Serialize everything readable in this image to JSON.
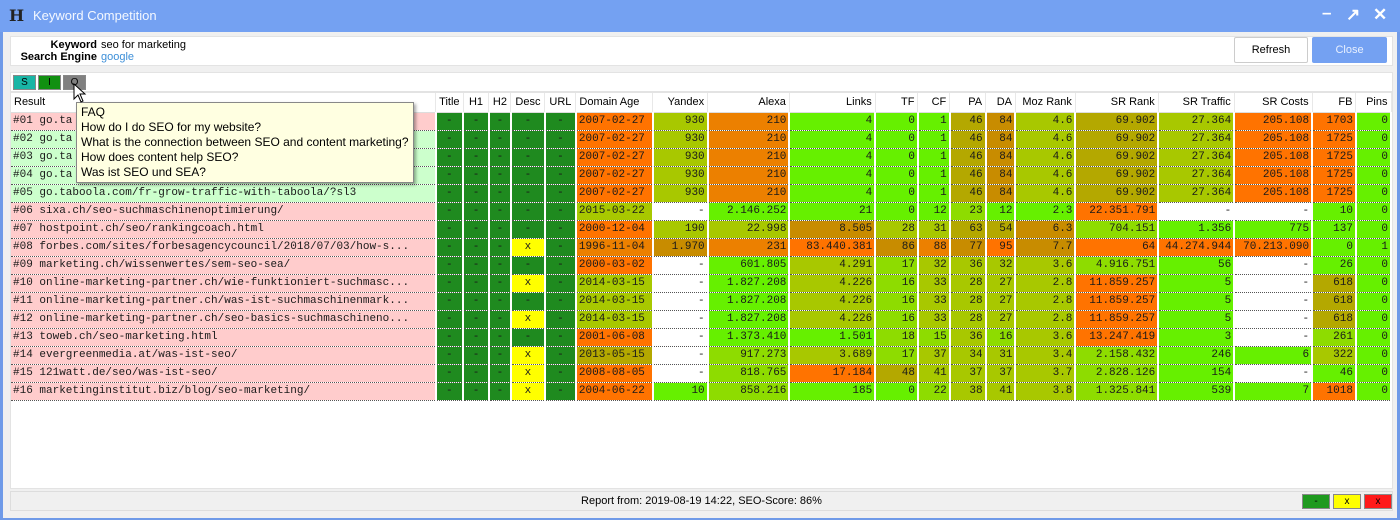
{
  "window": {
    "title": "Keyword Competition",
    "icon": "app-logo-icon",
    "controls": [
      "minimize-icon",
      "maximize-icon",
      "close-icon"
    ]
  },
  "info": {
    "keyword_label": "Keyword",
    "keyword": "seo for marketing",
    "engine_label": "Search Engine",
    "engine": "google",
    "refresh": "Refresh",
    "close": "Close"
  },
  "toolbar": {
    "buttons": [
      {
        "label": "S",
        "color": "#19b5a5"
      },
      {
        "label": "I",
        "color": "#119011"
      },
      {
        "label": "O",
        "color": "#808080"
      }
    ]
  },
  "tooltip": {
    "lines": [
      "FAQ",
      "How do I do SEO for my website?",
      "What is the connection between SEO and content marketing?",
      "How does content help SEO?",
      "Was ist SEO und SEA?"
    ]
  },
  "palette": {
    "D": "#1f8a1f",
    "Y": "#ffff00",
    "g": "#66f000",
    "l": "#8edc00",
    "o": "#a8c800",
    "k": "#b4a800",
    "b": "#c88c00",
    "a": "#ec8000",
    "r": "#ff7300",
    "w": "#ffffff",
    "P": "#ffcccc",
    "G": "#ccffcc"
  },
  "table": {
    "columns": [
      "Result",
      "Title",
      "H1",
      "H2",
      "Desc",
      "URL",
      "Domain Age",
      "Yandex",
      "Alexa",
      "Links",
      "TF",
      "CF",
      "PA",
      "DA",
      "Moz Rank",
      "SR Rank",
      "SR Traffic",
      "SR Costs",
      "FB",
      "Pins"
    ],
    "rows": [
      {
        "bg": "P",
        "result": "#01 go.ta",
        "checks": [
          "-",
          "-",
          "-",
          "-",
          "-"
        ],
        "cells": [
          [
            "2007-02-27",
            "r"
          ],
          [
            "930",
            "o"
          ],
          [
            "210",
            "a"
          ],
          [
            "4",
            "g"
          ],
          [
            "0",
            "g"
          ],
          [
            "1",
            "g"
          ],
          [
            "46",
            "k"
          ],
          [
            "84",
            "b"
          ],
          [
            "4.6",
            "o"
          ],
          [
            "69.902",
            "k"
          ],
          [
            "27.364",
            "o"
          ],
          [
            "205.108",
            "r"
          ],
          [
            "1703",
            "r"
          ],
          [
            "0",
            "g"
          ]
        ]
      },
      {
        "bg": "G",
        "result": "#02 go.ta",
        "checks": [
          "-",
          "-",
          "-",
          "-",
          "-"
        ],
        "cells": [
          [
            "2007-02-27",
            "r"
          ],
          [
            "930",
            "o"
          ],
          [
            "210",
            "a"
          ],
          [
            "4",
            "g"
          ],
          [
            "0",
            "g"
          ],
          [
            "1",
            "g"
          ],
          [
            "46",
            "k"
          ],
          [
            "84",
            "b"
          ],
          [
            "4.6",
            "o"
          ],
          [
            "69.902",
            "k"
          ],
          [
            "27.364",
            "o"
          ],
          [
            "205.108",
            "r"
          ],
          [
            "1725",
            "r"
          ],
          [
            "0",
            "g"
          ]
        ]
      },
      {
        "bg": "G",
        "result": "#03 go.ta",
        "checks": [
          "-",
          "-",
          "-",
          "-",
          "-"
        ],
        "cells": [
          [
            "2007-02-27",
            "r"
          ],
          [
            "930",
            "o"
          ],
          [
            "210",
            "a"
          ],
          [
            "4",
            "g"
          ],
          [
            "0",
            "g"
          ],
          [
            "1",
            "g"
          ],
          [
            "46",
            "k"
          ],
          [
            "84",
            "b"
          ],
          [
            "4.6",
            "o"
          ],
          [
            "69.902",
            "k"
          ],
          [
            "27.364",
            "o"
          ],
          [
            "205.108",
            "r"
          ],
          [
            "1725",
            "r"
          ],
          [
            "0",
            "g"
          ]
        ]
      },
      {
        "bg": "G",
        "result": "#04 go.ta",
        "checks": [
          "-",
          "-",
          "-",
          "-",
          "-"
        ],
        "cells": [
          [
            "2007-02-27",
            "r"
          ],
          [
            "930",
            "o"
          ],
          [
            "210",
            "a"
          ],
          [
            "4",
            "g"
          ],
          [
            "0",
            "g"
          ],
          [
            "1",
            "g"
          ],
          [
            "46",
            "k"
          ],
          [
            "84",
            "b"
          ],
          [
            "4.6",
            "o"
          ],
          [
            "69.902",
            "k"
          ],
          [
            "27.364",
            "o"
          ],
          [
            "205.108",
            "r"
          ],
          [
            "1725",
            "r"
          ],
          [
            "0",
            "g"
          ]
        ]
      },
      {
        "bg": "G",
        "result": "#05 go.taboola.com/fr-grow-traffic-with-taboola/?sl3",
        "checks": [
          "-",
          "-",
          "-",
          "-",
          "-"
        ],
        "cells": [
          [
            "2007-02-27",
            "r"
          ],
          [
            "930",
            "o"
          ],
          [
            "210",
            "a"
          ],
          [
            "4",
            "g"
          ],
          [
            "0",
            "g"
          ],
          [
            "1",
            "g"
          ],
          [
            "46",
            "k"
          ],
          [
            "84",
            "b"
          ],
          [
            "4.6",
            "o"
          ],
          [
            "69.902",
            "k"
          ],
          [
            "27.364",
            "o"
          ],
          [
            "205.108",
            "r"
          ],
          [
            "1725",
            "r"
          ],
          [
            "0",
            "g"
          ]
        ]
      },
      {
        "bg": "P",
        "result": "#06 sixa.ch/seo-suchmaschinenoptimierung/",
        "checks": [
          "-",
          "-",
          "-",
          "-",
          "-"
        ],
        "cells": [
          [
            "2015-03-22",
            "o"
          ],
          [
            "-",
            "w"
          ],
          [
            "2.146.252",
            "g"
          ],
          [
            "21",
            "g"
          ],
          [
            "0",
            "g"
          ],
          [
            "12",
            "g"
          ],
          [
            "23",
            "l"
          ],
          [
            "12",
            "g"
          ],
          [
            "2.3",
            "g"
          ],
          [
            "22.351.791",
            "r"
          ],
          [
            "-",
            "w"
          ],
          [
            "-",
            "w"
          ],
          [
            "10",
            "g"
          ],
          [
            "0",
            "g"
          ]
        ]
      },
      {
        "bg": "P",
        "result": "#07 hostpoint.ch/seo/rankingcoach.html",
        "checks": [
          "-",
          "-",
          "-",
          "-",
          "-"
        ],
        "cells": [
          [
            "2000-12-04",
            "r"
          ],
          [
            "190",
            "o"
          ],
          [
            "22.998",
            "o"
          ],
          [
            "8.505",
            "b"
          ],
          [
            "28",
            "o"
          ],
          [
            "31",
            "o"
          ],
          [
            "63",
            "k"
          ],
          [
            "54",
            "k"
          ],
          [
            "6.3",
            "b"
          ],
          [
            "704.151",
            "l"
          ],
          [
            "1.356",
            "g"
          ],
          [
            "775",
            "g"
          ],
          [
            "137",
            "g"
          ],
          [
            "0",
            "g"
          ]
        ]
      },
      {
        "bg": "P",
        "result": "#08 forbes.com/sites/forbesagencycouncil/2018/07/03/how-s...",
        "checks": [
          "-",
          "-",
          "-",
          "x",
          "-"
        ],
        "cells": [
          [
            "1996-11-04",
            "a"
          ],
          [
            "1.970",
            "b"
          ],
          [
            "231",
            "a"
          ],
          [
            "83.440.381",
            "r"
          ],
          [
            "86",
            "b"
          ],
          [
            "88",
            "a"
          ],
          [
            "77",
            "b"
          ],
          [
            "95",
            "r"
          ],
          [
            "7.7",
            "b"
          ],
          [
            "64",
            "r"
          ],
          [
            "44.274.944",
            "r"
          ],
          [
            "70.213.090",
            "r"
          ],
          [
            "0",
            "g"
          ],
          [
            "1",
            "g"
          ]
        ]
      },
      {
        "bg": "P",
        "result": "#09 marketing.ch/wissenwertes/sem-seo-sea/",
        "checks": [
          "-",
          "-",
          "-",
          "-",
          "-"
        ],
        "cells": [
          [
            "2000-03-02",
            "r"
          ],
          [
            "-",
            "w"
          ],
          [
            "601.805",
            "g"
          ],
          [
            "4.291",
            "o"
          ],
          [
            "17",
            "l"
          ],
          [
            "32",
            "o"
          ],
          [
            "36",
            "o"
          ],
          [
            "32",
            "o"
          ],
          [
            "3.6",
            "o"
          ],
          [
            "4.916.751",
            "l"
          ],
          [
            "56",
            "g"
          ],
          [
            "-",
            "w"
          ],
          [
            "26",
            "g"
          ],
          [
            "0",
            "g"
          ]
        ]
      },
      {
        "bg": "P",
        "result": "#10 online-marketing-partner.ch/wie-funktioniert-suchmasc...",
        "checks": [
          "-",
          "-",
          "-",
          "x",
          "-"
        ],
        "cells": [
          [
            "2014-03-15",
            "o"
          ],
          [
            "-",
            "w"
          ],
          [
            "1.827.208",
            "g"
          ],
          [
            "4.226",
            "o"
          ],
          [
            "16",
            "l"
          ],
          [
            "33",
            "o"
          ],
          [
            "28",
            "o"
          ],
          [
            "27",
            "o"
          ],
          [
            "2.8",
            "o"
          ],
          [
            "11.859.257",
            "r"
          ],
          [
            "5",
            "g"
          ],
          [
            "-",
            "w"
          ],
          [
            "618",
            "k"
          ],
          [
            "0",
            "g"
          ]
        ]
      },
      {
        "bg": "P",
        "result": "#11 online-marketing-partner.ch/was-ist-suchmaschinenmark...",
        "checks": [
          "-",
          "-",
          "-",
          "-",
          "-"
        ],
        "cells": [
          [
            "2014-03-15",
            "o"
          ],
          [
            "-",
            "w"
          ],
          [
            "1.827.208",
            "g"
          ],
          [
            "4.226",
            "o"
          ],
          [
            "16",
            "l"
          ],
          [
            "33",
            "o"
          ],
          [
            "28",
            "o"
          ],
          [
            "27",
            "o"
          ],
          [
            "2.8",
            "o"
          ],
          [
            "11.859.257",
            "r"
          ],
          [
            "5",
            "g"
          ],
          [
            "-",
            "w"
          ],
          [
            "618",
            "k"
          ],
          [
            "0",
            "g"
          ]
        ]
      },
      {
        "bg": "P",
        "result": "#12 online-marketing-partner.ch/seo-basics-suchmaschineno...",
        "checks": [
          "-",
          "-",
          "-",
          "x",
          "-"
        ],
        "cells": [
          [
            "2014-03-15",
            "o"
          ],
          [
            "-",
            "w"
          ],
          [
            "1.827.208",
            "g"
          ],
          [
            "4.226",
            "o"
          ],
          [
            "16",
            "l"
          ],
          [
            "33",
            "o"
          ],
          [
            "28",
            "o"
          ],
          [
            "27",
            "o"
          ],
          [
            "2.8",
            "o"
          ],
          [
            "11.859.257",
            "r"
          ],
          [
            "5",
            "g"
          ],
          [
            "-",
            "w"
          ],
          [
            "618",
            "k"
          ],
          [
            "0",
            "g"
          ]
        ]
      },
      {
        "bg": "P",
        "result": "#13 toweb.ch/seo-marketing.html",
        "checks": [
          "-",
          "-",
          "-",
          "-",
          "-"
        ],
        "cells": [
          [
            "2001-06-08",
            "r"
          ],
          [
            "-",
            "w"
          ],
          [
            "1.373.410",
            "g"
          ],
          [
            "1.501",
            "g"
          ],
          [
            "18",
            "l"
          ],
          [
            "15",
            "l"
          ],
          [
            "36",
            "o"
          ],
          [
            "16",
            "l"
          ],
          [
            "3.6",
            "o"
          ],
          [
            "13.247.419",
            "r"
          ],
          [
            "3",
            "g"
          ],
          [
            "-",
            "w"
          ],
          [
            "261",
            "l"
          ],
          [
            "0",
            "g"
          ]
        ]
      },
      {
        "bg": "P",
        "result": "#14 evergreenmedia.at/was-ist-seo/",
        "checks": [
          "-",
          "-",
          "-",
          "x",
          "-"
        ],
        "cells": [
          [
            "2013-05-15",
            "k"
          ],
          [
            "-",
            "w"
          ],
          [
            "917.273",
            "l"
          ],
          [
            "3.689",
            "o"
          ],
          [
            "17",
            "l"
          ],
          [
            "37",
            "o"
          ],
          [
            "34",
            "o"
          ],
          [
            "31",
            "o"
          ],
          [
            "3.4",
            "o"
          ],
          [
            "2.158.432",
            "l"
          ],
          [
            "246",
            "g"
          ],
          [
            "6",
            "g"
          ],
          [
            "322",
            "o"
          ],
          [
            "0",
            "g"
          ]
        ]
      },
      {
        "bg": "P",
        "result": "#15 121watt.de/seo/was-ist-seo/",
        "checks": [
          "-",
          "-",
          "-",
          "x",
          "-"
        ],
        "cells": [
          [
            "2008-08-05",
            "r"
          ],
          [
            "-",
            "w"
          ],
          [
            "818.765",
            "l"
          ],
          [
            "17.184",
            "r"
          ],
          [
            "48",
            "k"
          ],
          [
            "41",
            "o"
          ],
          [
            "37",
            "o"
          ],
          [
            "37",
            "o"
          ],
          [
            "3.7",
            "o"
          ],
          [
            "2.828.126",
            "l"
          ],
          [
            "154",
            "g"
          ],
          [
            "-",
            "w"
          ],
          [
            "46",
            "g"
          ],
          [
            "0",
            "g"
          ]
        ]
      },
      {
        "bg": "P",
        "result": "#16 marketinginstitut.biz/blog/seo-marketing/",
        "checks": [
          "-",
          "-",
          "-",
          "x",
          "-"
        ],
        "cells": [
          [
            "2004-06-22",
            "r"
          ],
          [
            "10",
            "g"
          ],
          [
            "858.216",
            "l"
          ],
          [
            "185",
            "g"
          ],
          [
            "0",
            "g"
          ],
          [
            "22",
            "l"
          ],
          [
            "38",
            "o"
          ],
          [
            "41",
            "o"
          ],
          [
            "3.8",
            "o"
          ],
          [
            "1.325.841",
            "l"
          ],
          [
            "539",
            "g"
          ],
          [
            "7",
            "g"
          ],
          [
            "1018",
            "r"
          ],
          [
            "0",
            "g"
          ]
        ]
      }
    ]
  },
  "status": {
    "text": "Report from: 2019-08-19 14:22, SEO-Score: 86%",
    "legend": [
      {
        "label": "-",
        "color": "#1f9a1f"
      },
      {
        "label": "x",
        "color": "#ffff00"
      },
      {
        "label": "x",
        "color": "#ff1a1a"
      }
    ]
  }
}
